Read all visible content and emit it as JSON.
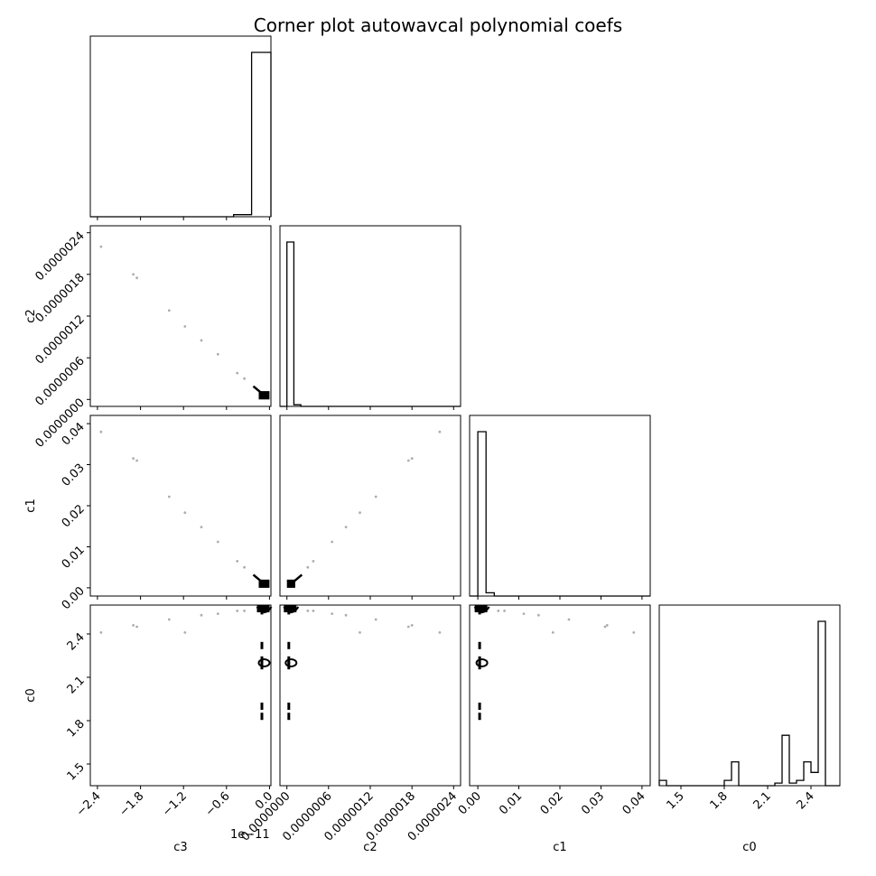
{
  "chart_data": {
    "type": "corner",
    "title": "Corner plot autowavcal polynomial coefs",
    "variables": [
      "c3",
      "c2",
      "c1",
      "c0"
    ],
    "axis_labels": [
      "c3",
      "c2",
      "c1",
      "c0"
    ],
    "y_axis_labels": {
      "c2": "c2",
      "c1": "c1",
      "c0": "c0"
    },
    "ranges": {
      "c3": [
        -2.5e-11,
        2e-13
      ],
      "c2": [
        -1e-07,
        2.5e-06
      ],
      "c1": [
        -0.002,
        0.042
      ],
      "c0": [
        1.35,
        2.6
      ]
    },
    "ticks": {
      "c3": {
        "values": [
          -2.4e-11,
          -1.8e-11,
          -1.2e-11,
          -6e-12,
          0
        ],
        "labels": [
          "−2.4",
          "−1.8",
          "−1.2",
          "−0.6",
          "0.0"
        ],
        "offset_text": "1e−11"
      },
      "c2": {
        "values": [
          0,
          6e-07,
          1.2e-06,
          1.8e-06,
          2.4e-06
        ],
        "labels": [
          "0.0000000",
          "0.0000006",
          "0.0000012",
          "0.0000018",
          "0.0000024"
        ]
      },
      "c1": {
        "values": [
          0,
          0.01,
          0.02,
          0.03,
          0.04
        ],
        "labels": [
          "0.00",
          "0.01",
          "0.02",
          "0.03",
          "0.04"
        ]
      },
      "c0": {
        "values": [
          1.5,
          1.8,
          2.1,
          2.4
        ],
        "labels": [
          "1.5",
          "1.8",
          "2.1",
          "2.4"
        ]
      }
    },
    "histograms": {
      "c3": {
        "edges": [
          -2.5e-11,
          -5e-12,
          -2.5e-12,
          2e-13
        ],
        "counts": [
          0,
          1,
          80
        ]
      },
      "c2": {
        "edges": [
          -1e-07,
          0.0,
          1e-07,
          2e-07,
          2.5e-06
        ],
        "counts": [
          0,
          100,
          1,
          0
        ]
      },
      "c1": {
        "edges": [
          -0.002,
          0.0,
          0.002,
          0.004,
          0.042
        ],
        "counts": [
          0,
          100,
          2,
          0
        ]
      },
      "c0": {
        "edges": [
          1.35,
          1.4,
          1.45,
          1.5,
          1.55,
          1.6,
          1.65,
          1.7,
          1.75,
          1.8,
          1.85,
          1.9,
          1.95,
          2.0,
          2.05,
          2.1,
          2.15,
          2.2,
          2.25,
          2.3,
          2.35,
          2.4,
          2.45,
          2.5,
          2.55,
          2.6
        ],
        "counts": [
          2,
          0,
          0,
          0,
          0,
          0,
          0,
          0,
          0,
          2,
          9,
          0,
          0,
          0,
          0,
          0,
          1,
          19,
          1,
          2,
          9,
          5,
          62,
          0,
          0
        ]
      }
    },
    "scatter_points": [
      {
        "c3": -2.35e-11,
        "c2": 2.2e-06,
        "c1": 0.038,
        "c0": 2.41
      },
      {
        "c3": -1.9e-11,
        "c2": 1.8e-06,
        "c1": 0.0315,
        "c0": 2.46
      },
      {
        "c3": -1.85e-11,
        "c2": 1.75e-06,
        "c1": 0.031,
        "c0": 2.45
      },
      {
        "c3": -1.4e-11,
        "c2": 1.28e-06,
        "c1": 0.0222,
        "c0": 2.5
      },
      {
        "c3": -1.18e-11,
        "c2": 1.05e-06,
        "c1": 0.0183,
        "c0": 2.41
      },
      {
        "c3": -9.5e-12,
        "c2": 8.5e-07,
        "c1": 0.0148,
        "c0": 2.53
      },
      {
        "c3": -7.2e-12,
        "c2": 6.5e-07,
        "c1": 0.0112,
        "c0": 2.54
      },
      {
        "c3": -4.5e-12,
        "c2": 3.8e-07,
        "c1": 0.0065,
        "c0": 2.56
      },
      {
        "c3": -3.5e-12,
        "c2": 3e-07,
        "c1": 0.005,
        "c0": 2.56
      }
    ],
    "dense_cluster": {
      "c3": [
        -1.5e-12,
        0.0
      ],
      "c2": [
        0.0,
        1.2e-07
      ],
      "c1": [
        0.0,
        0.002
      ],
      "c0_levels": [
        1.83,
        1.9,
        2.18,
        2.22,
        2.32,
        2.56
      ]
    },
    "grid": false
  }
}
